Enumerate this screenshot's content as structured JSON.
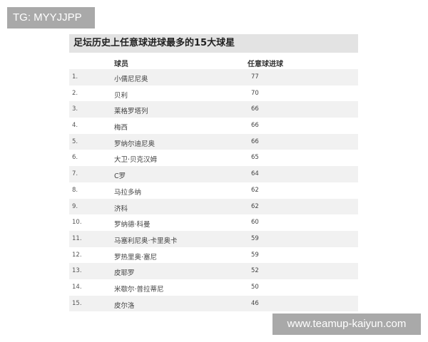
{
  "watermarks": {
    "top_left": "TG: MYYJJPP",
    "bottom_right": "www.teamup-kaiyun.com"
  },
  "table": {
    "title": "足坛历史上任意球进球最多的15大球星",
    "headers": {
      "player": "球员",
      "goals": "任意球进球"
    },
    "rows": [
      {
        "rank": "1.",
        "name": "小儒尼尼奥",
        "goals": "77"
      },
      {
        "rank": "2.",
        "name": "贝利",
        "goals": "70"
      },
      {
        "rank": "3.",
        "name": "莱格罗塔列",
        "goals": "66"
      },
      {
        "rank": "4.",
        "name": "梅西",
        "goals": "66"
      },
      {
        "rank": "5.",
        "name": "罗纳尔迪尼奥",
        "goals": "66"
      },
      {
        "rank": "6.",
        "name": "大卫·贝克汉姆",
        "goals": "65"
      },
      {
        "rank": "7.",
        "name": "C罗",
        "goals": "64"
      },
      {
        "rank": "8.",
        "name": "马拉多纳",
        "goals": "62"
      },
      {
        "rank": "9.",
        "name": "济科",
        "goals": "62"
      },
      {
        "rank": "10.",
        "name": "罗纳德·科曼",
        "goals": "60"
      },
      {
        "rank": "11.",
        "name": "马塞利尼奥·卡里奥卡",
        "goals": "59"
      },
      {
        "rank": "12.",
        "name": "罗热里奥·塞尼",
        "goals": "59"
      },
      {
        "rank": "13.",
        "name": "皮耶罗",
        "goals": "52"
      },
      {
        "rank": "14.",
        "name": "米歇尔·普拉蒂尼",
        "goals": "50"
      },
      {
        "rank": "15.",
        "name": "皮尔洛",
        "goals": "46"
      }
    ]
  }
}
